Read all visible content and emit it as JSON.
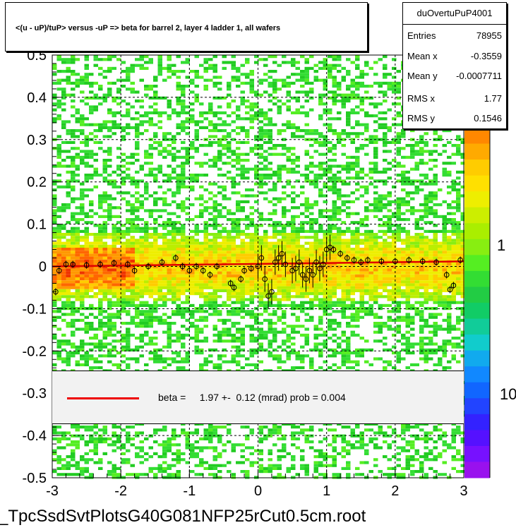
{
  "title": "<(u - uP)/tuP> versus  -uP => beta for barrel 2, layer 4 ladder 1, all wafers",
  "stats": {
    "name": "duOvertuPuP4001",
    "rows": [
      {
        "label": "Entries",
        "value": "78955"
      },
      {
        "label": "Mean x",
        "value": "-0.3559"
      },
      {
        "label": "Mean y",
        "value": "-0.0007711"
      },
      {
        "label": "RMS x",
        "value": "1.77"
      },
      {
        "label": "RMS y",
        "value": "0.1546"
      }
    ]
  },
  "fit": {
    "text": "beta =     1.97 +-  0.12 (mrad) prob = 0.004",
    "line_color": "#e00000"
  },
  "footer": "_TpcSsdSvtPlotsG40G081NFP25rCut0.5cm.root",
  "chart_data": {
    "type": "heatmap",
    "xlim": [
      -3,
      3
    ],
    "ylim": [
      -0.5,
      0.5
    ],
    "x_ticks": [
      "-3",
      "-2",
      "-1",
      "0",
      "1",
      "2",
      "3"
    ],
    "y_ticks": [
      "-0.5",
      "-0.4",
      "-0.3",
      "-0.2",
      "-0.1",
      "0",
      "0.1",
      "0.2",
      "0.3",
      "0.4",
      "0.5"
    ],
    "colorbar_labels": [
      "1",
      "10"
    ],
    "grid": true,
    "fit_line": {
      "x": [
        -3,
        3
      ],
      "y": [
        0.0,
        0.012
      ],
      "color": "#e00000"
    },
    "profile_points": [
      {
        "x": -2.95,
        "y": -0.06
      },
      {
        "x": -2.9,
        "y": -0.01
      },
      {
        "x": -2.8,
        "y": 0.005
      },
      {
        "x": -2.7,
        "y": 0.005
      },
      {
        "x": -2.5,
        "y": 0.003
      },
      {
        "x": -2.3,
        "y": 0.005
      },
      {
        "x": -2.1,
        "y": 0.008
      },
      {
        "x": -1.9,
        "y": 0.005
      },
      {
        "x": -1.8,
        "y": -0.01
      },
      {
        "x": -1.6,
        "y": 0.0
      },
      {
        "x": -1.4,
        "y": 0.01
      },
      {
        "x": -1.2,
        "y": 0.02
      },
      {
        "x": -1.1,
        "y": 0.0
      },
      {
        "x": -1.0,
        "y": -0.01
      },
      {
        "x": -0.9,
        "y": 0.0
      },
      {
        "x": -0.8,
        "y": -0.01
      },
      {
        "x": -0.7,
        "y": -0.02
      },
      {
        "x": -0.6,
        "y": 0.0
      },
      {
        "x": -0.4,
        "y": -0.04
      },
      {
        "x": -0.35,
        "y": -0.05
      },
      {
        "x": -0.25,
        "y": -0.03
      },
      {
        "x": -0.2,
        "y": -0.01
      },
      {
        "x": -0.1,
        "y": -0.005
      },
      {
        "x": 0.0,
        "y": 0.0
      },
      {
        "x": 0.05,
        "y": 0.02
      },
      {
        "x": 0.1,
        "y": -0.03
      },
      {
        "x": 0.15,
        "y": -0.07
      },
      {
        "x": 0.2,
        "y": -0.06
      },
      {
        "x": 0.25,
        "y": 0.01
      },
      {
        "x": 0.3,
        "y": 0.02
      },
      {
        "x": 0.35,
        "y": 0.03
      },
      {
        "x": 0.4,
        "y": 0.005
      },
      {
        "x": 0.5,
        "y": -0.01
      },
      {
        "x": 0.55,
        "y": -0.005
      },
      {
        "x": 0.6,
        "y": 0.01
      },
      {
        "x": 0.65,
        "y": -0.02
      },
      {
        "x": 0.7,
        "y": -0.03
      },
      {
        "x": 0.75,
        "y": -0.01
      },
      {
        "x": 0.8,
        "y": -0.02
      },
      {
        "x": 0.85,
        "y": 0.01
      },
      {
        "x": 0.9,
        "y": -0.005
      },
      {
        "x": 0.95,
        "y": 0.005
      },
      {
        "x": 1.0,
        "y": 0.04
      },
      {
        "x": 1.05,
        "y": 0.045
      },
      {
        "x": 1.1,
        "y": 0.04
      },
      {
        "x": 1.2,
        "y": 0.03
      },
      {
        "x": 1.3,
        "y": 0.02
      },
      {
        "x": 1.4,
        "y": 0.015
      },
      {
        "x": 1.5,
        "y": 0.01
      },
      {
        "x": 1.6,
        "y": 0.015
      },
      {
        "x": 1.8,
        "y": 0.012
      },
      {
        "x": 2.0,
        "y": 0.012
      },
      {
        "x": 2.2,
        "y": 0.015
      },
      {
        "x": 2.4,
        "y": 0.012
      },
      {
        "x": 2.6,
        "y": 0.01
      },
      {
        "x": 2.75,
        "y": -0.02
      },
      {
        "x": 2.8,
        "y": -0.055
      },
      {
        "x": 2.85,
        "y": -0.045
      },
      {
        "x": 2.95,
        "y": 0.015
      }
    ]
  }
}
